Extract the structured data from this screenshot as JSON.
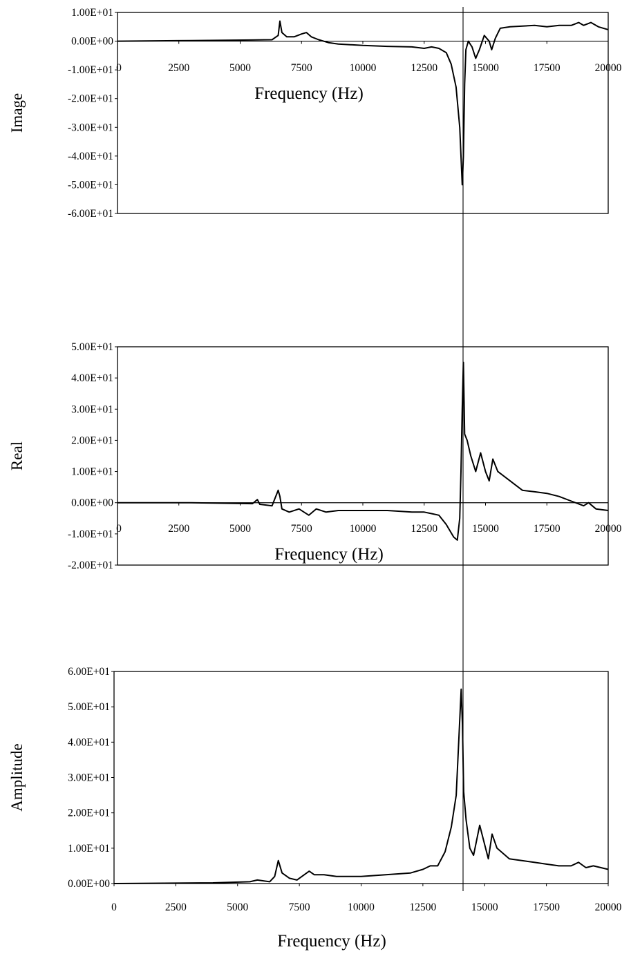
{
  "chart_data": [
    {
      "type": "line",
      "ylabel": "Image",
      "xlabel": "Frequency (Hz)",
      "xlim": [
        0,
        20000
      ],
      "ylim": [
        -60,
        10
      ],
      "x_ticks": [
        "0",
        "2500",
        "5000",
        "7500",
        "10000",
        "12500",
        "15000",
        "17500",
        "20000"
      ],
      "y_ticks": [
        "1.00E+01",
        "0.00E+00",
        "-1.00E+01",
        "-2.00E+01",
        "-3.00E+01",
        "-4.00E+01",
        "-5.00E+01",
        "-6.00E+01"
      ],
      "grid": false,
      "series": [
        {
          "x": [
            0,
            3000,
            5500,
            6300,
            6550,
            6620,
            6700,
            6900,
            7200,
            7500,
            7700,
            7900,
            8200,
            8600,
            9000,
            10000,
            11000,
            12000,
            12500,
            12800,
            13100,
            13400,
            13600,
            13800,
            13950,
            14050,
            14100,
            14150,
            14200,
            14300,
            14450,
            14600,
            14750,
            14950,
            15150,
            15250,
            15400,
            15600,
            16000,
            17000,
            17500,
            18000,
            18500,
            18800,
            19000,
            19300,
            19600,
            20000
          ],
          "y": [
            0,
            0.2,
            0.4,
            0.5,
            2,
            7,
            3,
            1.5,
            1.5,
            2.5,
            3,
            1.5,
            0.5,
            -0.5,
            -1,
            -1.5,
            -1.8,
            -2,
            -2.5,
            -2,
            -2.5,
            -4,
            -8,
            -16,
            -30,
            -50,
            -40,
            -15,
            -3,
            0,
            -2,
            -6,
            -3,
            2,
            0,
            -3,
            1,
            4.5,
            5,
            5.5,
            5,
            5.5,
            5.5,
            6.5,
            5.5,
            6.5,
            5,
            4
          ]
        }
      ]
    },
    {
      "type": "line",
      "ylabel": "Real",
      "xlabel": "Frequency (Hz)",
      "xlim": [
        0,
        20000
      ],
      "ylim": [
        -20,
        50
      ],
      "x_ticks": [
        "0",
        "2500",
        "5000",
        "7500",
        "10000",
        "12500",
        "15000",
        "17500",
        "20000"
      ],
      "y_ticks": [
        "5.00E+01",
        "4.00E+01",
        "3.00E+01",
        "2.00E+01",
        "1.00E+01",
        "0.00E+00",
        "-1.00E+01",
        "-2.00E+01"
      ],
      "grid": false,
      "series": [
        {
          "x": [
            0,
            3000,
            5500,
            5700,
            5800,
            6300,
            6550,
            6620,
            6700,
            7000,
            7400,
            7600,
            7800,
            8100,
            8500,
            9000,
            10000,
            11000,
            12000,
            12500,
            12800,
            13100,
            13400,
            13700,
            13850,
            13950,
            14000,
            14050,
            14100,
            14150,
            14250,
            14400,
            14600,
            14800,
            15000,
            15150,
            15300,
            15500,
            16000,
            16500,
            17000,
            17500,
            18000,
            18500,
            19000,
            19200,
            19500,
            20000
          ],
          "y": [
            0,
            0,
            -0.3,
            1,
            -0.5,
            -1,
            4,
            2,
            -2,
            -3,
            -2,
            -3,
            -4,
            -2,
            -3,
            -2.5,
            -2.5,
            -2.5,
            -3,
            -3,
            -3.5,
            -4,
            -7,
            -11,
            -12,
            -5,
            10,
            30,
            45,
            22,
            20,
            15,
            10,
            16,
            10,
            7,
            14,
            10,
            7,
            4,
            3.5,
            3,
            2,
            0.5,
            -1,
            0,
            -2,
            -2.5
          ]
        }
      ]
    },
    {
      "type": "line",
      "ylabel": "Amplitude",
      "xlabel": "Frequency (Hz)",
      "xlim": [
        0,
        20000
      ],
      "ylim": [
        0,
        60
      ],
      "x_ticks": [
        "0",
        "2500",
        "5000",
        "7500",
        "10000",
        "12500",
        "15000",
        "17500",
        "20000"
      ],
      "y_ticks": [
        "6.00E+01",
        "5.00E+01",
        "4.00E+01",
        "3.00E+01",
        "2.00E+01",
        "1.00E+01",
        "0.00E+00"
      ],
      "grid": false,
      "series": [
        {
          "x": [
            0,
            4000,
            5500,
            5800,
            6300,
            6500,
            6650,
            6800,
            7100,
            7400,
            7600,
            7900,
            8100,
            8500,
            9000,
            10000,
            11000,
            12000,
            12500,
            12800,
            13100,
            13400,
            13650,
            13850,
            13950,
            14050,
            14100,
            14150,
            14250,
            14400,
            14550,
            14800,
            15000,
            15150,
            15300,
            15500,
            16000,
            16500,
            17000,
            17500,
            18000,
            18500,
            18800,
            19100,
            19400,
            20000
          ],
          "y": [
            0,
            0.2,
            0.5,
            1,
            0.5,
            2,
            6.5,
            3,
            1.5,
            1,
            2,
            3.5,
            2.5,
            2.5,
            2,
            2,
            2.5,
            3,
            4,
            5,
            5,
            9,
            16,
            25,
            40,
            55,
            45,
            26,
            18,
            10,
            8,
            16.5,
            11,
            7,
            14,
            10,
            7,
            6.5,
            6,
            5.5,
            5,
            5,
            6,
            4.5,
            5,
            4
          ]
        }
      ]
    }
  ]
}
